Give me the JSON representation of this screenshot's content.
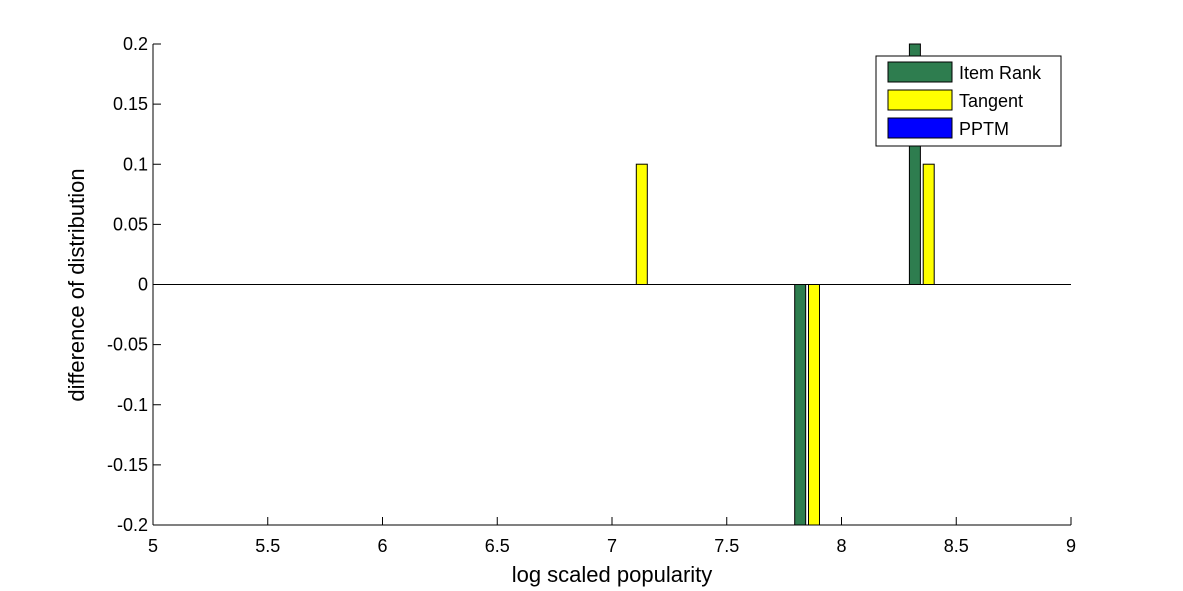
{
  "chart_data": {
    "type": "bar",
    "title": "",
    "xlabel": "log scaled popularity",
    "ylabel": "difference of distribution",
    "xlim": [
      5,
      9
    ],
    "ylim": [
      -0.2,
      0.2
    ],
    "xticks": [
      "5",
      "5.5",
      "6",
      "6.5",
      "7",
      "7.5",
      "8",
      "8.5",
      "9"
    ],
    "yticks": [
      "0.2",
      "0.15",
      "0.1",
      "0.05",
      "0",
      "-0.05",
      "-0.1",
      "-0.15",
      "-0.2"
    ],
    "grid": false,
    "legend_position": "top-right",
    "series": [
      {
        "name": "Item Rank",
        "color": "#2e7d4f",
        "points": [
          {
            "x": 7.82,
            "y": -0.2
          },
          {
            "x": 8.32,
            "y": 0.2
          }
        ]
      },
      {
        "name": "Tangent",
        "color": "#ffff00",
        "points": [
          {
            "x": 7.13,
            "y": 0.1
          },
          {
            "x": 7.88,
            "y": -0.2
          },
          {
            "x": 8.38,
            "y": 0.1
          }
        ]
      },
      {
        "name": "PPTM",
        "color": "#0000ff",
        "points": []
      }
    ]
  }
}
